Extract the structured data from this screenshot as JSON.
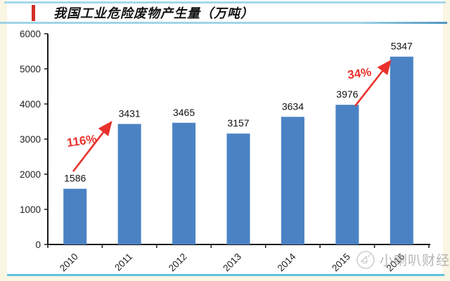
{
  "page": {
    "background": "#fbf5e4"
  },
  "header": {
    "title": "我国工业危险废物产生量（万吨）",
    "accent_color": "#d42f27"
  },
  "chart_data": {
    "type": "bar",
    "title": "我国工业危险废物产生量（万吨）",
    "categories": [
      "2010",
      "2011",
      "2012",
      "2013",
      "2014",
      "2015",
      "2016"
    ],
    "values": [
      1586,
      3431,
      3465,
      3157,
      3634,
      3976,
      5347
    ],
    "value_labels": [
      "1586",
      "3431",
      "3465",
      "3157",
      "3634",
      "3976",
      "5347"
    ],
    "yticks": [
      "0",
      "1000",
      "2000",
      "3000",
      "4000",
      "5000",
      "6000"
    ],
    "ylim": [
      0,
      6000
    ],
    "xlabel": "",
    "ylabel": "",
    "grid": false,
    "legend": "none",
    "bar_color": "#4a82c4",
    "axis_color": "#1a1a1a",
    "annotation_color": "#e9322d",
    "annotations": [
      {
        "label": "116%",
        "from_category": "2010",
        "to_category": "2011"
      },
      {
        "label": "34%",
        "from_category": "2015",
        "to_category": "2016"
      }
    ]
  },
  "watermark": {
    "logo": "megaphone-circle-icon",
    "text": "小喇叭财经"
  }
}
